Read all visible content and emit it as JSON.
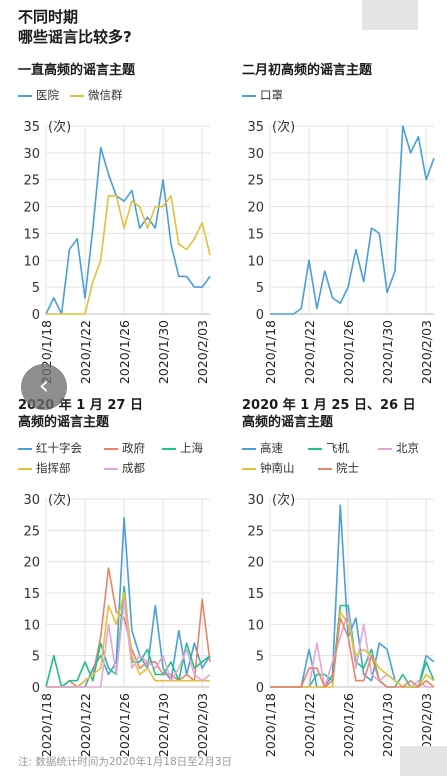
{
  "title_line1": "不同时期",
  "title_line2": "哪些谣言比较多?",
  "footnote": "注: 数据统计时间为2020年1月18日至2月3日",
  "nav_back_glyph": "‹",
  "chart_data": [
    {
      "type": "line",
      "title": "一直高频的谣言主题",
      "ylabel": "(次)",
      "yticks": [
        0,
        5,
        10,
        15,
        20,
        25,
        30,
        35
      ],
      "ylim": [
        0,
        35
      ],
      "xlim": [
        0,
        21
      ],
      "x_tick_positions": [
        0,
        5,
        10,
        15,
        20
      ],
      "xtick_labels": [
        "2020/1/18",
        "2020/1/22",
        "2020/1/26",
        "2020/1/30",
        "2020/2/03"
      ],
      "grid": true,
      "series": [
        {
          "name": "医院",
          "color": "#4a9fd8",
          "x": [
            0,
            1,
            2,
            3,
            4,
            5,
            6,
            7,
            8,
            9,
            10,
            11,
            12,
            13,
            14,
            15,
            16,
            17,
            18,
            19,
            20,
            21
          ],
          "values": [
            0,
            3,
            0,
            12,
            14,
            3,
            16,
            31,
            26,
            22,
            21,
            23,
            16,
            18,
            16,
            25,
            13,
            7,
            7,
            5,
            5,
            7
          ]
        },
        {
          "name": "微信群",
          "color": "#e3c03a",
          "x": [
            0,
            1,
            2,
            3,
            4,
            5,
            6,
            7,
            8,
            9,
            10,
            11,
            12,
            13,
            14,
            15,
            16,
            17,
            18,
            19,
            20,
            21
          ],
          "values": [
            0,
            0,
            0,
            0,
            0,
            0,
            6,
            10,
            22,
            22,
            16,
            21,
            20,
            16,
            20,
            20,
            22,
            13,
            12,
            14,
            17,
            11
          ]
        }
      ]
    },
    {
      "type": "line",
      "title": "二月初高频的谣言主题",
      "ylabel": "(次)",
      "yticks": [
        0,
        5,
        10,
        15,
        20,
        25,
        30,
        35
      ],
      "ylim": [
        0,
        35
      ],
      "xlim": [
        0,
        21
      ],
      "x_tick_positions": [
        0,
        5,
        10,
        15,
        20
      ],
      "xtick_labels": [
        "2020/1/18",
        "2020/1/22",
        "2020/1/26",
        "2020/1/30",
        "2020/2/03"
      ],
      "grid": true,
      "series": [
        {
          "name": "口罩",
          "color": "#4a9fd8",
          "x": [
            0,
            1,
            2,
            3,
            4,
            5,
            6,
            7,
            8,
            9,
            10,
            11,
            12,
            13,
            14,
            15,
            16,
            17,
            18,
            19,
            20,
            21
          ],
          "values": [
            0,
            0,
            0,
            0,
            1,
            10,
            1,
            8,
            3,
            2,
            5,
            12,
            6,
            16,
            15,
            4,
            8,
            35,
            30,
            33,
            25,
            29
          ]
        }
      ]
    },
    {
      "type": "line",
      "title": "2020 年 1 月 27 日\n高频的谣言主题",
      "ylabel": "(次)",
      "yticks": [
        0,
        5,
        10,
        15,
        20,
        25,
        30
      ],
      "ylim": [
        0,
        30
      ],
      "xlim": [
        0,
        21
      ],
      "x_tick_positions": [
        0,
        5,
        10,
        15,
        20
      ],
      "xtick_labels": [
        "2020/1/18",
        "2020/1/22",
        "2020/1/26",
        "2020/1/30",
        "2020/2/03"
      ],
      "grid": true,
      "series": [
        {
          "name": "红十字会",
          "color": "#4a9fd8",
          "x": [
            0,
            1,
            2,
            3,
            4,
            5,
            6,
            7,
            8,
            9,
            10,
            11,
            12,
            13,
            14,
            15,
            16,
            17,
            18,
            19,
            20,
            21
          ],
          "values": [
            0,
            0,
            0,
            0,
            0,
            0,
            3,
            5,
            2,
            4,
            27,
            9,
            5,
            3,
            13,
            3,
            1,
            9,
            2,
            7,
            3,
            5
          ]
        },
        {
          "name": "政府",
          "color": "#e8846a",
          "x": [
            0,
            1,
            2,
            3,
            4,
            5,
            6,
            7,
            8,
            9,
            10,
            11,
            12,
            13,
            14,
            15,
            16,
            17,
            18,
            19,
            20,
            21
          ],
          "values": [
            0,
            0,
            0,
            1,
            0,
            1,
            2,
            8,
            19,
            12,
            11,
            6,
            3,
            4,
            4,
            2,
            2,
            1,
            2,
            1,
            14,
            4
          ]
        },
        {
          "name": "上海",
          "color": "#22c08a",
          "x": [
            0,
            1,
            2,
            3,
            4,
            5,
            6,
            7,
            8,
            9,
            10,
            11,
            12,
            13,
            14,
            15,
            16,
            17,
            18,
            19,
            20,
            21
          ],
          "values": [
            0,
            5,
            0,
            1,
            1,
            4,
            1,
            7,
            3,
            2,
            16,
            4,
            4,
            6,
            2,
            2,
            4,
            1,
            7,
            3,
            4,
            5
          ]
        },
        {
          "name": "指挥部",
          "color": "#e3c03a",
          "x": [
            0,
            1,
            2,
            3,
            4,
            5,
            6,
            7,
            8,
            9,
            10,
            11,
            12,
            13,
            14,
            15,
            16,
            17,
            18,
            19,
            20,
            21
          ],
          "values": [
            0,
            0,
            0,
            0,
            0,
            1,
            2,
            3,
            13,
            10,
            15,
            5,
            2,
            3,
            1,
            1,
            1,
            1,
            1,
            1,
            1,
            1
          ]
        },
        {
          "name": "成都",
          "color": "#e2a6d8",
          "x": [
            0,
            1,
            2,
            3,
            4,
            5,
            6,
            7,
            8,
            9,
            10,
            11,
            12,
            13,
            14,
            15,
            16,
            17,
            18,
            19,
            20,
            21
          ],
          "values": [
            0,
            0,
            0,
            0,
            0,
            0,
            0,
            0,
            10,
            2,
            14,
            3,
            5,
            4,
            3,
            5,
            1,
            3,
            6,
            2,
            1,
            2
          ]
        }
      ]
    },
    {
      "type": "line",
      "title": "2020 年 1 月 25 日、26 日\n高频的谣言主题",
      "ylabel": "(次)",
      "yticks": [
        0,
        5,
        10,
        15,
        20,
        25,
        30
      ],
      "ylim": [
        0,
        30
      ],
      "xlim": [
        0,
        21
      ],
      "x_tick_positions": [
        0,
        5,
        10,
        15,
        20
      ],
      "xtick_labels": [
        "2020/1/18",
        "2020/1/22",
        "2020/1/26",
        "2020/1/30",
        "2020/2/03"
      ],
      "grid": true,
      "series": [
        {
          "name": "高速",
          "color": "#4a9fd8",
          "x": [
            0,
            1,
            2,
            3,
            4,
            5,
            6,
            7,
            8,
            9,
            10,
            11,
            12,
            13,
            14,
            15,
            16,
            17,
            18,
            19,
            20,
            21
          ],
          "values": [
            0,
            0,
            0,
            0,
            0,
            6,
            0,
            0,
            2,
            29,
            8,
            11,
            2,
            1,
            7,
            6,
            1,
            0,
            0,
            0,
            5,
            4
          ]
        },
        {
          "name": "飞机",
          "color": "#22c08a",
          "x": [
            0,
            1,
            2,
            3,
            4,
            5,
            6,
            7,
            8,
            9,
            10,
            11,
            12,
            13,
            14,
            15,
            16,
            17,
            18,
            19,
            20,
            21
          ],
          "values": [
            0,
            0,
            0,
            0,
            0,
            0,
            2,
            2,
            1,
            13,
            13,
            4,
            3,
            6,
            1,
            0,
            0,
            2,
            0,
            0,
            4,
            1
          ]
        },
        {
          "name": "北京",
          "color": "#e2a6d8",
          "x": [
            0,
            1,
            2,
            3,
            4,
            5,
            6,
            7,
            8,
            9,
            10,
            11,
            12,
            13,
            14,
            15,
            16,
            17,
            18,
            19,
            20,
            21
          ],
          "values": [
            0,
            0,
            0,
            0,
            0,
            0,
            7,
            0,
            4,
            8,
            12,
            3,
            10,
            2,
            1,
            2,
            1,
            0,
            0,
            1,
            0,
            0
          ]
        },
        {
          "name": "钟南山",
          "color": "#e3c03a",
          "x": [
            0,
            1,
            2,
            3,
            4,
            5,
            6,
            7,
            8,
            9,
            10,
            11,
            12,
            13,
            14,
            15,
            16,
            17,
            18,
            19,
            20,
            21
          ],
          "values": [
            0,
            0,
            0,
            0,
            0,
            0,
            0,
            0,
            0,
            12,
            10,
            5,
            6,
            5,
            3,
            2,
            1,
            0,
            0,
            0,
            2,
            1
          ]
        },
        {
          "name": "院士",
          "color": "#e8846a",
          "x": [
            0,
            1,
            2,
            3,
            4,
            5,
            6,
            7,
            8,
            9,
            10,
            11,
            12,
            13,
            14,
            15,
            16,
            17,
            18,
            19,
            20,
            21
          ],
          "values": [
            0,
            0,
            0,
            0,
            0,
            3,
            3,
            0,
            1,
            11,
            8,
            1,
            1,
            5,
            1,
            0,
            0,
            0,
            1,
            0,
            1,
            0
          ]
        }
      ]
    }
  ]
}
